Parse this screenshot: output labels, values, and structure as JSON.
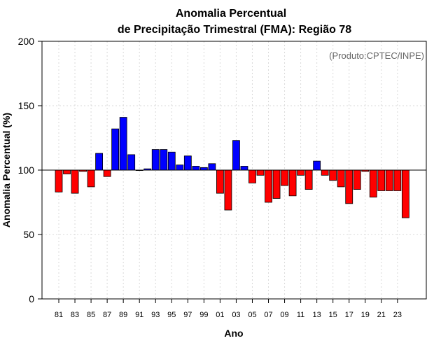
{
  "chart_data": {
    "type": "bar",
    "title_line1": "Anomalia Percentual",
    "title_line2": "de Precipitação Trimestral (FMA): Região 78",
    "xlabel": "Ano",
    "ylabel": "Anomalia Percentual (%)",
    "credit": "(Produto:CPTEC/INPE)",
    "ylim": [
      0,
      200
    ],
    "yticks": [
      "0",
      "50",
      "100",
      "150",
      "200"
    ],
    "baseline": 100,
    "x_tick_labels": [
      "81",
      "83",
      "85",
      "87",
      "89",
      "91",
      "93",
      "95",
      "97",
      "99",
      "01",
      "03",
      "05",
      "07",
      "09",
      "11",
      "13",
      "15",
      "17",
      "19",
      "21",
      "23"
    ],
    "categories": [
      "1981",
      "1982",
      "1983",
      "1984",
      "1985",
      "1986",
      "1987",
      "1988",
      "1989",
      "1990",
      "1991",
      "1992",
      "1993",
      "1994",
      "1995",
      "1996",
      "1997",
      "1998",
      "1999",
      "2000",
      "2001",
      "2002",
      "2003",
      "2004",
      "2005",
      "2006",
      "2007",
      "2008",
      "2009",
      "2010",
      "2011",
      "2012",
      "2013",
      "2014",
      "2015",
      "2016",
      "2017",
      "2018",
      "2019",
      "2020",
      "2021",
      "2022",
      "2023",
      "2024"
    ],
    "values": [
      83,
      97,
      82,
      99,
      87,
      113,
      95,
      132,
      141,
      112,
      100,
      101,
      116,
      116,
      114,
      104,
      111,
      103,
      102,
      105,
      82,
      69,
      123,
      103,
      90,
      96,
      75,
      78,
      88,
      80,
      96,
      85,
      107,
      96,
      92,
      87,
      74,
      85,
      99,
      79,
      84,
      84,
      84,
      63
    ],
    "positive_color": "#0000ff",
    "negative_color": "#ff0000"
  }
}
